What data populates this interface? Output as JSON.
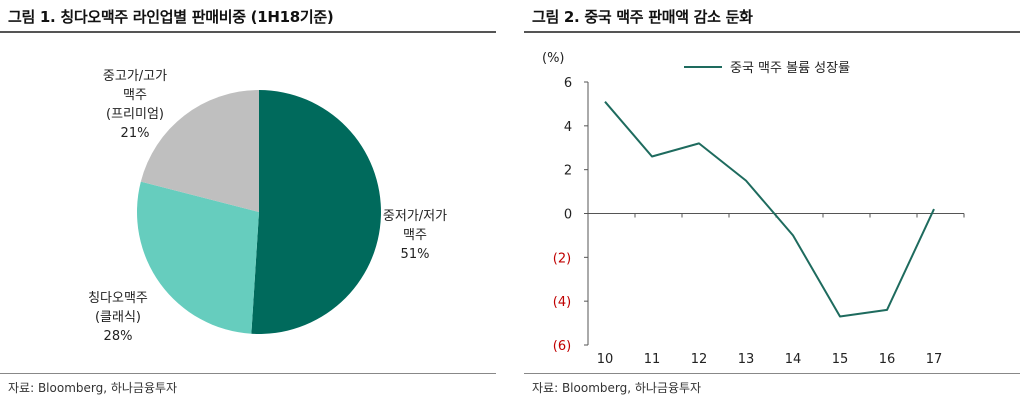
{
  "colors": {
    "dark_teal": "#006A5C",
    "light_teal": "#66CDBE",
    "gray": "#BFBFBF",
    "line": "#1E6B5E",
    "negative_label": "#C00000"
  },
  "charts": [
    {
      "title": "그림 1. 칭다오맥주 라인업별 판매비중 (1H18기준)",
      "source": "자료: Bloomberg, 하나금융투자",
      "chart_data": {
        "type": "pie",
        "slices": [
          {
            "label_lines": [
              "중저가/저가",
              "맥주"
            ],
            "value": 51,
            "value_label": "51%",
            "color": "#006A5C"
          },
          {
            "label_lines": [
              "칭다오맥주",
              "(클래식)"
            ],
            "value": 28,
            "value_label": "28%",
            "color": "#66CDBE"
          },
          {
            "label_lines": [
              "중고가/고가",
              "맥주",
              "(프리미엄)"
            ],
            "value": 21,
            "value_label": "21%",
            "color": "#BFBFBF"
          }
        ]
      }
    },
    {
      "title": "그림 2. 중국 맥주 판매액 감소 둔화",
      "source": "자료: Bloomberg, 하나금융투자",
      "chart_data": {
        "type": "line",
        "y_unit_label": "(%)",
        "x": [
          "10",
          "11",
          "12",
          "13",
          "14",
          "15",
          "16",
          "17"
        ],
        "ylim": [
          -6,
          6
        ],
        "yticks": [
          6,
          4,
          2,
          0,
          -2,
          -4,
          -6
        ],
        "ytick_labels": [
          "6",
          "4",
          "2",
          "0",
          "(2)",
          "(4)",
          "(6)"
        ],
        "legend_position": "top",
        "grid": false,
        "series": [
          {
            "name": "중국 맥주 볼륨 성장률",
            "values": [
              5.1,
              2.6,
              3.2,
              1.5,
              -1.0,
              -4.7,
              -4.4,
              0.2
            ],
            "color": "#1E6B5E"
          }
        ]
      }
    }
  ]
}
